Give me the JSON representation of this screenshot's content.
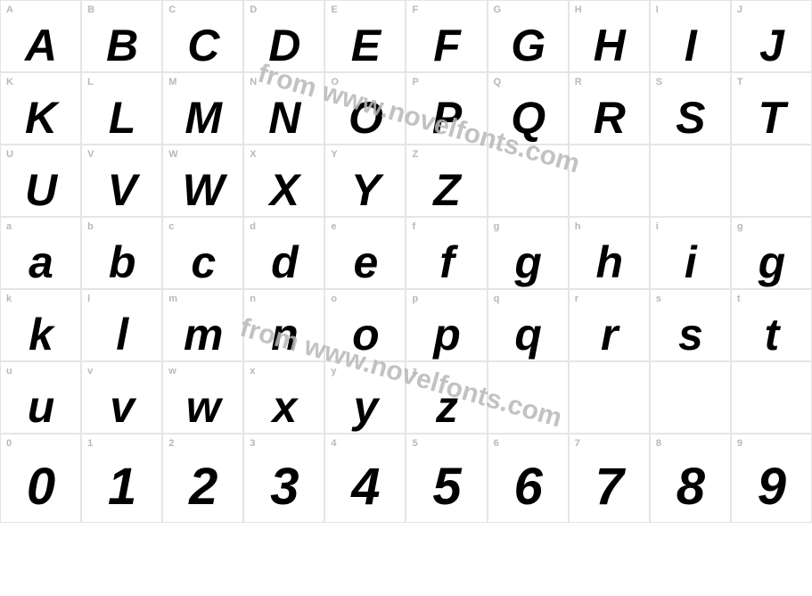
{
  "chart": {
    "type": "font-specimen-grid",
    "columns": 10,
    "cell_border_color": "#e5e5e5",
    "background_color": "#ffffff",
    "label_color": "#b8b8b8",
    "label_fontsize": 11,
    "glyph_color": "#000000",
    "glyph_fontsize": 50,
    "glyph_fontsize_digits": 58,
    "glyph_style": "bold italic",
    "watermark_text": "from www.novelfonts.com",
    "watermark_color": "#b8b8b8",
    "watermark_fontsize": 30,
    "watermark_rotation_deg": 16
  },
  "rows": [
    {
      "type": "upper",
      "cells": [
        {
          "label": "A",
          "glyph": "A"
        },
        {
          "label": "B",
          "glyph": "B"
        },
        {
          "label": "C",
          "glyph": "C"
        },
        {
          "label": "D",
          "glyph": "D"
        },
        {
          "label": "E",
          "glyph": "E"
        },
        {
          "label": "F",
          "glyph": "F"
        },
        {
          "label": "G",
          "glyph": "G"
        },
        {
          "label": "H",
          "glyph": "H"
        },
        {
          "label": "I",
          "glyph": "I"
        },
        {
          "label": "J",
          "glyph": "J"
        }
      ]
    },
    {
      "type": "upper",
      "cells": [
        {
          "label": "K",
          "glyph": "K"
        },
        {
          "label": "L",
          "glyph": "L"
        },
        {
          "label": "M",
          "glyph": "M"
        },
        {
          "label": "N",
          "glyph": "N"
        },
        {
          "label": "O",
          "glyph": "O"
        },
        {
          "label": "P",
          "glyph": "P"
        },
        {
          "label": "Q",
          "glyph": "Q"
        },
        {
          "label": "R",
          "glyph": "R"
        },
        {
          "label": "S",
          "glyph": "S"
        },
        {
          "label": "T",
          "glyph": "T"
        }
      ]
    },
    {
      "type": "upper",
      "cells": [
        {
          "label": "U",
          "glyph": "U"
        },
        {
          "label": "V",
          "glyph": "V"
        },
        {
          "label": "W",
          "glyph": "W"
        },
        {
          "label": "X",
          "glyph": "X"
        },
        {
          "label": "Y",
          "glyph": "Y"
        },
        {
          "label": "Z",
          "glyph": "Z"
        },
        {
          "label": "",
          "glyph": ""
        },
        {
          "label": "",
          "glyph": ""
        },
        {
          "label": "",
          "glyph": ""
        },
        {
          "label": "",
          "glyph": ""
        }
      ]
    },
    {
      "type": "lower",
      "cells": [
        {
          "label": "a",
          "glyph": "a"
        },
        {
          "label": "b",
          "glyph": "b"
        },
        {
          "label": "c",
          "glyph": "c"
        },
        {
          "label": "d",
          "glyph": "d"
        },
        {
          "label": "e",
          "glyph": "e"
        },
        {
          "label": "f",
          "glyph": "f"
        },
        {
          "label": "g",
          "glyph": "g"
        },
        {
          "label": "h",
          "glyph": "h"
        },
        {
          "label": "i",
          "glyph": "i"
        },
        {
          "label": "g",
          "glyph": "g"
        }
      ]
    },
    {
      "type": "lower",
      "cells": [
        {
          "label": "k",
          "glyph": "k"
        },
        {
          "label": "l",
          "glyph": "l"
        },
        {
          "label": "m",
          "glyph": "m"
        },
        {
          "label": "n",
          "glyph": "n"
        },
        {
          "label": "o",
          "glyph": "o"
        },
        {
          "label": "p",
          "glyph": "p"
        },
        {
          "label": "q",
          "glyph": "q"
        },
        {
          "label": "r",
          "glyph": "r"
        },
        {
          "label": "s",
          "glyph": "s"
        },
        {
          "label": "t",
          "glyph": "t"
        }
      ]
    },
    {
      "type": "lower",
      "cells": [
        {
          "label": "u",
          "glyph": "u"
        },
        {
          "label": "v",
          "glyph": "v"
        },
        {
          "label": "w",
          "glyph": "w"
        },
        {
          "label": "x",
          "glyph": "x"
        },
        {
          "label": "y",
          "glyph": "y"
        },
        {
          "label": "z",
          "glyph": "z"
        },
        {
          "label": "",
          "glyph": ""
        },
        {
          "label": "",
          "glyph": ""
        },
        {
          "label": "",
          "glyph": ""
        },
        {
          "label": "",
          "glyph": ""
        }
      ]
    },
    {
      "type": "digits",
      "cells": [
        {
          "label": "0",
          "glyph": "0"
        },
        {
          "label": "1",
          "glyph": "1"
        },
        {
          "label": "2",
          "glyph": "2"
        },
        {
          "label": "3",
          "glyph": "3"
        },
        {
          "label": "4",
          "glyph": "4"
        },
        {
          "label": "5",
          "glyph": "5"
        },
        {
          "label": "6",
          "glyph": "6"
        },
        {
          "label": "7",
          "glyph": "7"
        },
        {
          "label": "8",
          "glyph": "8"
        },
        {
          "label": "9",
          "glyph": "9"
        }
      ]
    }
  ]
}
